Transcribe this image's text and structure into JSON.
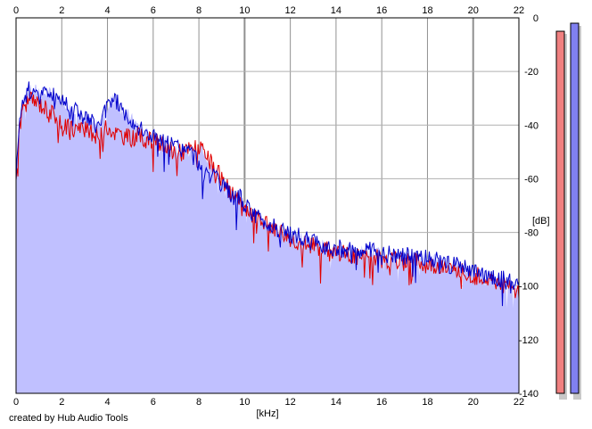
{
  "chart_data": {
    "type": "area",
    "xlabel": "[kHz]",
    "ylabel": "[dB]",
    "xlim": [
      0,
      22
    ],
    "ylim": [
      -140,
      0
    ],
    "x_ticks": [
      0,
      2,
      4,
      6,
      8,
      10,
      12,
      14,
      16,
      18,
      20,
      22
    ],
    "y_ticks": [
      0,
      -20,
      -40,
      -60,
      -80,
      -100,
      -120,
      -140
    ],
    "grid": true,
    "x": [
      0,
      0.1,
      0.3,
      0.5,
      0.8,
      1.0,
      1.2,
      1.5,
      1.8,
      2.0,
      2.3,
      2.6,
      3.0,
      3.3,
      3.6,
      4.0,
      4.2,
      4.4,
      4.7,
      5.0,
      5.3,
      5.6,
      6.0,
      6.3,
      6.6,
      7.0,
      7.3,
      7.6,
      8.0,
      8.3,
      8.6,
      9.0,
      9.4,
      9.8,
      10.0,
      10.5,
      11.0,
      11.5,
      12.0,
      12.5,
      13.0,
      13.5,
      14.0,
      14.5,
      15.0,
      15.5,
      16.0,
      16.5,
      17.0,
      17.5,
      18.0,
      18.5,
      19.0,
      19.5,
      20.0,
      20.5,
      21.0,
      21.5,
      22.0
    ],
    "series": [
      {
        "color": "#e00000",
        "values": [
          -60,
          -45,
          -33,
          -31,
          -31,
          -32,
          -33,
          -35,
          -37,
          -41,
          -40,
          -41,
          -42,
          -43,
          -44,
          -41,
          -42,
          -43,
          -44,
          -45,
          -44,
          -45,
          -46,
          -47,
          -49,
          -50,
          -50,
          -49,
          -48,
          -52,
          -55,
          -60,
          -65,
          -70,
          -72,
          -75,
          -77,
          -79,
          -82,
          -84,
          -85,
          -86,
          -87,
          -88,
          -89,
          -89,
          -90,
          -90,
          -91,
          -91,
          -92,
          -92,
          -94,
          -95,
          -96,
          -97,
          -98,
          -100,
          -103
        ]
      },
      {
        "color": "#0000cc",
        "values": [
          -58,
          -42,
          -31,
          -27,
          -27,
          -27,
          -28,
          -28,
          -29,
          -31,
          -32,
          -34,
          -37,
          -39,
          -41,
          -33,
          -30,
          -31,
          -35,
          -37,
          -40,
          -43,
          -44,
          -45,
          -47,
          -48,
          -49,
          -50,
          -54,
          -57,
          -59,
          -63,
          -66,
          -67,
          -70,
          -74,
          -77,
          -79,
          -81,
          -82,
          -84,
          -85,
          -86,
          -86,
          -87,
          -87,
          -88,
          -88,
          -89,
          -89,
          -90,
          -90,
          -92,
          -93,
          -95,
          -96,
          -97,
          -98,
          -100
        ]
      }
    ],
    "area": {
      "color": "#c0c0ff",
      "values": [
        -58,
        -42,
        -31,
        -27,
        -27,
        -27,
        -28,
        -28,
        -29,
        -31,
        -32,
        -34,
        -37,
        -39,
        -41,
        -33,
        -30,
        -31,
        -35,
        -37,
        -40,
        -43,
        -44,
        -45,
        -47,
        -48,
        -49,
        -50,
        -48,
        -52,
        -55,
        -60,
        -65,
        -67,
        -70,
        -74,
        -77,
        -79,
        -81,
        -82,
        -84,
        -85,
        -86,
        -86,
        -87,
        -87,
        -88,
        -88,
        -89,
        -89,
        -90,
        -90,
        -92,
        -93,
        -95,
        -96,
        -97,
        -98,
        -100
      ]
    },
    "level_meters": [
      {
        "color": "#f08080",
        "value": -5
      },
      {
        "color": "#8080f0",
        "value": -2
      }
    ]
  },
  "credit": "created by Hub Audio Tools"
}
